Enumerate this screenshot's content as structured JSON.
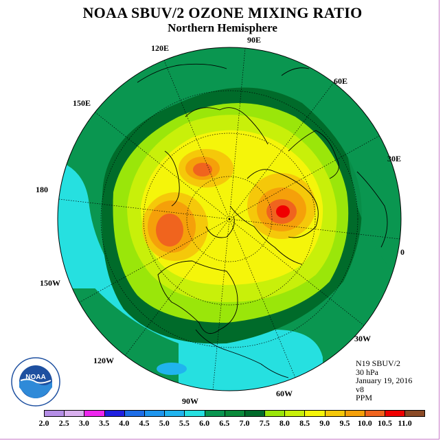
{
  "title": "NOAA SBUV/2 OZONE MIXING RATIO",
  "subtitle": "Northern Hemisphere",
  "longitude_labels": {
    "lon_90e": "90E",
    "lon_120e": "120E",
    "lon_60e": "60E",
    "lon_150e": "150E",
    "lon_30e": "30E",
    "lon_180": "180",
    "lon_0": "0",
    "lon_150w": "150W",
    "lon_30w": "30W",
    "lon_120w": "120W",
    "lon_60w": "60W",
    "lon_90w": "90W"
  },
  "info": {
    "instrument": "N19 SBUV/2",
    "level": "30 hPa",
    "date": "January 19, 2016",
    "version": "v8",
    "units": "PPM"
  },
  "logo_text": "NOAA",
  "color_scale": {
    "ticks": [
      "2.0",
      "2.5",
      "3.0",
      "3.5",
      "4.0",
      "4.5",
      "5.0",
      "5.5",
      "6.0",
      "6.5",
      "7.0",
      "7.5",
      "8.0",
      "8.5",
      "9.0",
      "9.5",
      "10.0",
      "10.5",
      "11.0"
    ],
    "colors": [
      "#b58ee6",
      "#d9b0ee",
      "#ee26ee",
      "#2020e0",
      "#1e6ee8",
      "#1e96ee",
      "#20b4ee",
      "#26e0e0",
      "#0a9650",
      "#0a8a3a",
      "#006b2a",
      "#9ae60a",
      "#c8f00a",
      "#f5f50a",
      "#f5c80a",
      "#f5a00a",
      "#f0641e",
      "#f00000",
      "#8b4a26"
    ]
  }
}
